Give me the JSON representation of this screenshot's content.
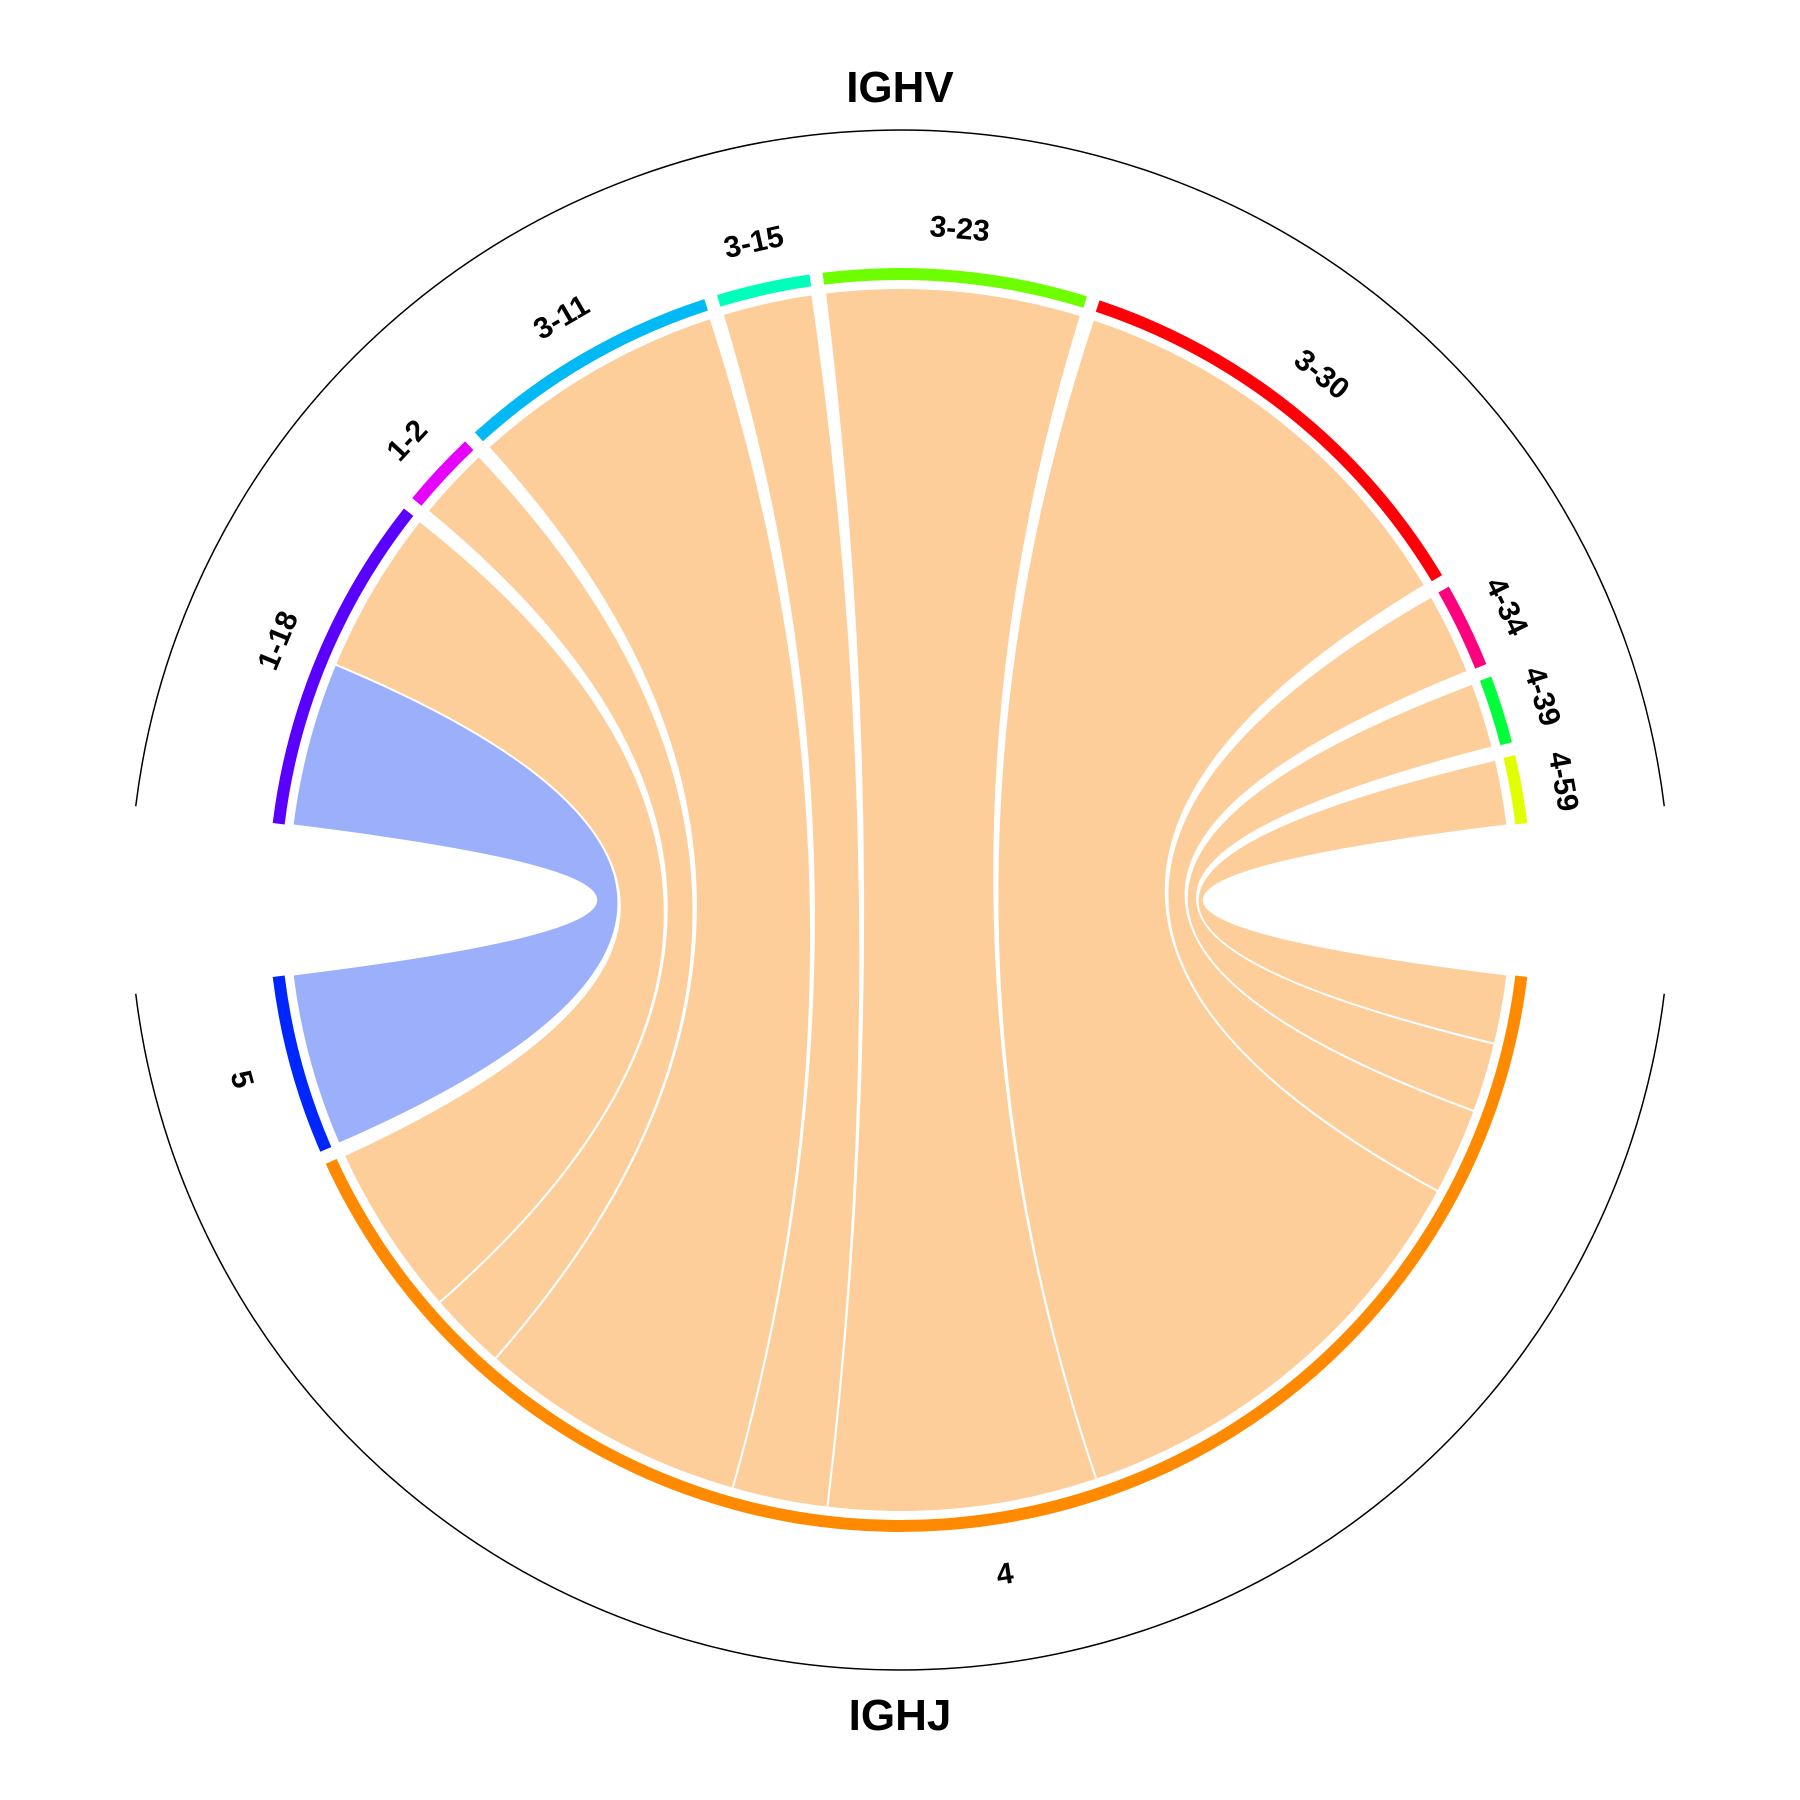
{
  "chart_data": {
    "type": "chord",
    "groups": [
      {
        "name": "IGHV",
        "segments": [
          {
            "label": "1-18",
            "color": "#5a00ff"
          },
          {
            "label": "1-2",
            "color": "#e600ff"
          },
          {
            "label": "3-11",
            "color": "#00b9f5"
          },
          {
            "label": "3-15",
            "color": "#00ffbb"
          },
          {
            "label": "3-23",
            "color": "#6dff00"
          },
          {
            "label": "3-30",
            "color": "#ff0008"
          },
          {
            "label": "4-34",
            "color": "#ff007f"
          },
          {
            "label": "4-39",
            "color": "#00ff3a"
          },
          {
            "label": "4-59",
            "color": "#e0ff00"
          }
        ]
      },
      {
        "name": "IGHJ",
        "segments": [
          {
            "label": "4",
            "color": "#ff8a00"
          },
          {
            "label": "5",
            "color": "#0026ff"
          }
        ]
      }
    ],
    "links": [
      {
        "source": "1-18",
        "target": "5",
        "value": 1.0,
        "color": "#7f99fa"
      },
      {
        "source": "1-18",
        "target": "4",
        "value": 1.0,
        "color": "#fdbf7d"
      },
      {
        "source": "1-2",
        "target": "4",
        "value": 0.45,
        "color": "#fdbf7d"
      },
      {
        "source": "3-11",
        "target": "4",
        "value": 1.55,
        "color": "#fdbf7d"
      },
      {
        "source": "3-15",
        "target": "4",
        "value": 0.55,
        "color": "#fdbf7d"
      },
      {
        "source": "3-23",
        "target": "4",
        "value": 1.55,
        "color": "#fdbf7d"
      },
      {
        "source": "3-30",
        "target": "4",
        "value": 2.6,
        "color": "#fdbf7d"
      },
      {
        "source": "4-34",
        "target": "4",
        "value": 0.5,
        "color": "#fdbf7d"
      },
      {
        "source": "4-39",
        "target": "4",
        "value": 0.4,
        "color": "#fdbf7d"
      },
      {
        "source": "4-59",
        "target": "4",
        "value": 0.4,
        "color": "#fdbf7d"
      }
    ]
  }
}
